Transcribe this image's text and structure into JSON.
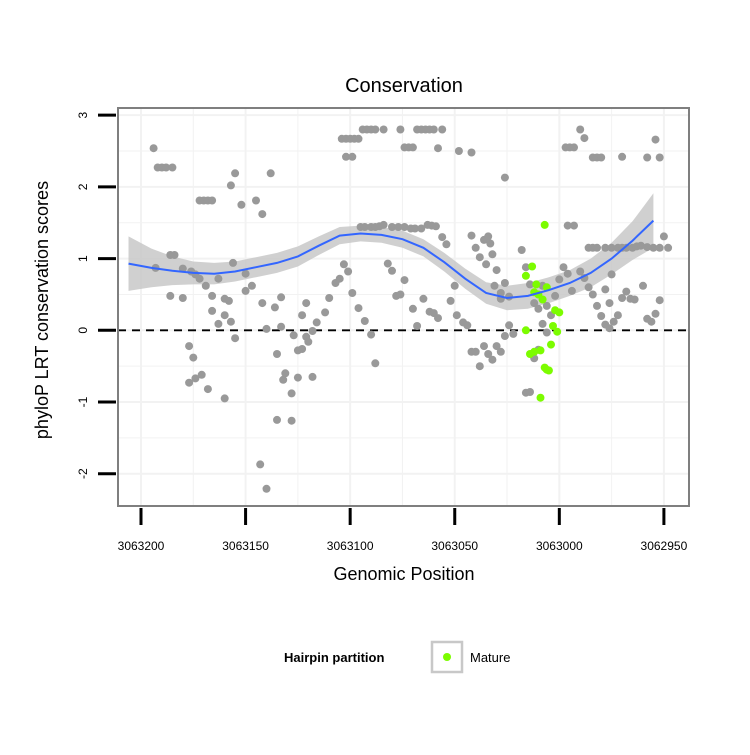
{
  "chart_data": {
    "type": "scatter",
    "title": "Conservation",
    "xlabel": "Genomic Position",
    "ylabel": "phyloP LRT conservation scores",
    "x_reversed": true,
    "xlim": [
      3063211,
      3062938
    ],
    "ylim": [
      -2.45,
      3.1
    ],
    "x_ticks": [
      3063200,
      3063150,
      3063100,
      3063050,
      3063000,
      3062950
    ],
    "x_tick_labels": [
      "3063200",
      "3063150",
      "3063100",
      "3063050",
      "3063000",
      "3062950"
    ],
    "y_ticks": [
      -2,
      -1,
      0,
      1,
      2,
      3
    ],
    "y_tick_labels": [
      "-2",
      "-1",
      "0",
      "1",
      "2",
      "3"
    ],
    "grid": true,
    "reference_line": {
      "y": 0,
      "style": "dashed",
      "color": "#000000"
    },
    "legend": {
      "title": "Hairpin partition",
      "placement": "bottom",
      "entries": [
        {
          "label": "Mature",
          "color": "#7cfc00"
        }
      ]
    },
    "colors": {
      "points": "#999999",
      "mature": "#7cfc00",
      "smooth_line": "#3366ff",
      "ribbon": "#c8c8c8",
      "panel_border": "#7f7f7f",
      "grid": "#f2f2f2"
    },
    "series": [
      {
        "role": "points",
        "points": [
          [
            3063194,
            2.54
          ],
          [
            3063192,
            2.27
          ],
          [
            3063190,
            2.27
          ],
          [
            3063188,
            2.27
          ],
          [
            3063185,
            2.27
          ],
          [
            3063193,
            0.87
          ],
          [
            3063186,
            1.05
          ],
          [
            3063184,
            1.05
          ],
          [
            3063180,
            0.86
          ],
          [
            3063176,
            0.82
          ],
          [
            3063174,
            0.78
          ],
          [
            3063172,
            0.72
          ],
          [
            3063169,
            0.62
          ],
          [
            3063166,
            0.48
          ],
          [
            3063163,
            0.72
          ],
          [
            3063186,
            0.48
          ],
          [
            3063180,
            0.45
          ],
          [
            3063177,
            -0.22
          ],
          [
            3063175,
            -0.38
          ],
          [
            3063171,
            -0.62
          ],
          [
            3063168,
            -0.82
          ],
          [
            3063177,
            -0.73
          ],
          [
            3063174,
            -0.67
          ],
          [
            3063160,
            -0.95
          ],
          [
            3063166,
            0.27
          ],
          [
            3063163,
            0.09
          ],
          [
            3063160,
            0.21
          ],
          [
            3063157,
            0.12
          ],
          [
            3063155,
            -0.11
          ],
          [
            3063150,
            0.55
          ],
          [
            3063147,
            0.62
          ],
          [
            3063142,
            0.38
          ],
          [
            3063140,
            0.02
          ],
          [
            3063135,
            -0.33
          ],
          [
            3063133,
            0.05
          ],
          [
            3063131,
            -0.6
          ],
          [
            3063128,
            -0.88
          ],
          [
            3063125,
            -0.28
          ],
          [
            3063123,
            0.21
          ],
          [
            3063121,
            0.38
          ],
          [
            3063118,
            -0.01
          ],
          [
            3063116,
            0.11
          ],
          [
            3063112,
            0.25
          ],
          [
            3063110,
            0.45
          ],
          [
            3063107,
            0.66
          ],
          [
            3063105,
            0.72
          ],
          [
            3063103,
            0.92
          ],
          [
            3063101,
            0.82
          ],
          [
            3063099,
            0.52
          ],
          [
            3063096,
            0.31
          ],
          [
            3063093,
            0.13
          ],
          [
            3063090,
            -0.06
          ],
          [
            3063088,
            -0.46
          ],
          [
            3063172,
            1.81
          ],
          [
            3063170,
            1.81
          ],
          [
            3063168,
            1.81
          ],
          [
            3063166,
            1.81
          ],
          [
            3063152,
            1.75
          ],
          [
            3063155,
            2.19
          ],
          [
            3063157,
            2.02
          ],
          [
            3063145,
            1.81
          ],
          [
            3063142,
            1.62
          ],
          [
            3063138,
            2.19
          ],
          [
            3063127,
            -0.07
          ],
          [
            3063121,
            -0.09
          ],
          [
            3063123,
            -0.26
          ],
          [
            3063135,
            -1.25
          ],
          [
            3063143,
            -1.87
          ],
          [
            3063140,
            -2.21
          ],
          [
            3063125,
            -0.66
          ],
          [
            3063118,
            -0.65
          ],
          [
            3063120,
            -0.16
          ],
          [
            3063132,
            -0.69
          ],
          [
            3063160,
            0.44
          ],
          [
            3063158,
            0.41
          ],
          [
            3063156,
            0.94
          ],
          [
            3063150,
            0.79
          ],
          [
            3063136,
            0.32
          ],
          [
            3063133,
            0.46
          ],
          [
            3063128,
            -1.26
          ],
          [
            3063104,
            2.67
          ],
          [
            3063102,
            2.67
          ],
          [
            3063100,
            2.67
          ],
          [
            3063098,
            2.67
          ],
          [
            3063096,
            2.67
          ],
          [
            3063094,
            2.8
          ],
          [
            3063092,
            2.8
          ],
          [
            3063090,
            2.8
          ],
          [
            3063088,
            2.8
          ],
          [
            3063084,
            2.8
          ],
          [
            3063076,
            2.8
          ],
          [
            3063074,
            2.55
          ],
          [
            3063072,
            2.55
          ],
          [
            3063070,
            2.55
          ],
          [
            3063068,
            2.8
          ],
          [
            3063066,
            2.8
          ],
          [
            3063064,
            2.8
          ],
          [
            3063062,
            2.8
          ],
          [
            3063060,
            2.8
          ],
          [
            3063058,
            2.54
          ],
          [
            3063056,
            2.8
          ],
          [
            3063102,
            2.42
          ],
          [
            3063099,
            2.42
          ],
          [
            3063095,
            1.44
          ],
          [
            3063093,
            1.44
          ],
          [
            3063090,
            1.44
          ],
          [
            3063088,
            1.44
          ],
          [
            3063086,
            1.45
          ],
          [
            3063084,
            1.47
          ],
          [
            3063080,
            1.44
          ],
          [
            3063077,
            1.44
          ],
          [
            3063074,
            1.44
          ],
          [
            3063071,
            1.42
          ],
          [
            3063069,
            1.42
          ],
          [
            3063066,
            1.42
          ],
          [
            3063063,
            1.47
          ],
          [
            3063061,
            1.46
          ],
          [
            3063059,
            1.45
          ],
          [
            3063056,
            1.3
          ],
          [
            3063054,
            1.2
          ],
          [
            3063050,
            0.62
          ],
          [
            3063052,
            0.41
          ],
          [
            3063049,
            0.21
          ],
          [
            3063046,
            0.11
          ],
          [
            3063044,
            0.07
          ],
          [
            3063042,
            -0.3
          ],
          [
            3063040,
            -0.3
          ],
          [
            3063038,
            -0.5
          ],
          [
            3063036,
            -0.22
          ],
          [
            3063034,
            -0.33
          ],
          [
            3063032,
            -0.41
          ],
          [
            3063030,
            -0.22
          ],
          [
            3063028,
            -0.3
          ],
          [
            3063026,
            -0.08
          ],
          [
            3063024,
            0.07
          ],
          [
            3063022,
            -0.05
          ],
          [
            3063082,
            0.93
          ],
          [
            3063080,
            0.83
          ],
          [
            3063078,
            0.48
          ],
          [
            3063076,
            0.5
          ],
          [
            3063074,
            0.7
          ],
          [
            3063070,
            0.3
          ],
          [
            3063068,
            0.06
          ],
          [
            3063065,
            0.44
          ],
          [
            3063062,
            0.26
          ],
          [
            3063060,
            0.24
          ],
          [
            3063058,
            0.17
          ],
          [
            3063042,
            1.32
          ],
          [
            3063040,
            1.15
          ],
          [
            3063038,
            1.02
          ],
          [
            3063036,
            1.26
          ],
          [
            3063034,
            1.31
          ],
          [
            3063032,
            1.06
          ],
          [
            3063030,
            0.84
          ],
          [
            3063028,
            0.52
          ],
          [
            3063026,
            0.66
          ],
          [
            3063024,
            0.47
          ],
          [
            3063048,
            2.5
          ],
          [
            3063042,
            2.48
          ],
          [
            3063035,
            0.92
          ],
          [
            3063033,
            1.21
          ],
          [
            3063031,
            0.62
          ],
          [
            3063028,
            0.44
          ],
          [
            3063026,
            2.13
          ],
          [
            3063018,
            1.12
          ],
          [
            3063016,
            0.88
          ],
          [
            3063014,
            0.64
          ],
          [
            3063012,
            0.38
          ],
          [
            3063010,
            0.3
          ],
          [
            3063008,
            0.09
          ],
          [
            3063006,
            -0.03
          ],
          [
            3063004,
            0.21
          ],
          [
            3063002,
            0.48
          ],
          [
            3063000,
            0.71
          ],
          [
            3062998,
            0.88
          ],
          [
            3062996,
            0.79
          ],
          [
            3062994,
            0.55
          ],
          [
            3063016,
            -0.87
          ],
          [
            3063014,
            -0.86
          ],
          [
            3063012,
            -0.39
          ],
          [
            3063010,
            -0.27
          ],
          [
            3063008,
            0.62
          ],
          [
            3063006,
            0.34
          ],
          [
            3062997,
            2.55
          ],
          [
            3062995,
            2.55
          ],
          [
            3062993,
            2.55
          ],
          [
            3062990,
            2.8
          ],
          [
            3062988,
            2.68
          ],
          [
            3062984,
            2.41
          ],
          [
            3062982,
            2.41
          ],
          [
            3062980,
            2.41
          ],
          [
            3062970,
            2.42
          ],
          [
            3062958,
            2.41
          ],
          [
            3062954,
            2.66
          ],
          [
            3062952,
            2.41
          ],
          [
            3062996,
            1.46
          ],
          [
            3062993,
            1.46
          ],
          [
            3062986,
            1.15
          ],
          [
            3062984,
            1.15
          ],
          [
            3062982,
            1.15
          ],
          [
            3062978,
            1.15
          ],
          [
            3062975,
            1.15
          ],
          [
            3062972,
            1.15
          ],
          [
            3062970,
            1.15
          ],
          [
            3062968,
            1.15
          ],
          [
            3062965,
            1.15
          ],
          [
            3062963,
            1.17
          ],
          [
            3062961,
            1.18
          ],
          [
            3062958,
            1.16
          ],
          [
            3062955,
            1.15
          ],
          [
            3062952,
            1.15
          ],
          [
            3062990,
            0.82
          ],
          [
            3062988,
            0.73
          ],
          [
            3062986,
            0.6
          ],
          [
            3062984,
            0.5
          ],
          [
            3062982,
            0.34
          ],
          [
            3062980,
            0.2
          ],
          [
            3062978,
            0.08
          ],
          [
            3062976,
            0.03
          ],
          [
            3062974,
            0.12
          ],
          [
            3062972,
            0.21
          ],
          [
            3062970,
            0.45
          ],
          [
            3062968,
            0.54
          ],
          [
            3062966,
            0.44
          ],
          [
            3062964,
            0.43
          ],
          [
            3062960,
            0.62
          ],
          [
            3062958,
            0.16
          ],
          [
            3062956,
            0.12
          ],
          [
            3062954,
            0.23
          ],
          [
            3062952,
            0.42
          ],
          [
            3062950,
            1.31
          ],
          [
            3062948,
            1.15
          ],
          [
            3062975,
            0.78
          ],
          [
            3062978,
            0.57
          ],
          [
            3062976,
            0.38
          ]
        ]
      },
      {
        "name": "Mature",
        "role": "mature",
        "points": [
          [
            3063016,
            0.0
          ],
          [
            3063014,
            -0.33
          ],
          [
            3063016,
            0.76
          ],
          [
            3063013,
            0.89
          ],
          [
            3063011,
            0.64
          ],
          [
            3063010,
            0.5
          ],
          [
            3063008,
            0.43
          ],
          [
            3063006,
            0.6
          ],
          [
            3063012,
            -0.3
          ],
          [
            3063009,
            -0.28
          ],
          [
            3063007,
            -0.52
          ],
          [
            3063006,
            -0.55
          ],
          [
            3063005,
            -0.56
          ],
          [
            3063004,
            -0.2
          ],
          [
            3063007,
            1.47
          ],
          [
            3063002,
            0.28
          ],
          [
            3063000,
            0.25
          ],
          [
            3063003,
            0.06
          ],
          [
            3063009,
            -0.94
          ],
          [
            3063001,
            -0.02
          ],
          [
            3063012,
            0.53
          ]
        ]
      }
    ],
    "smooth": {
      "x": [
        3063206,
        3063195,
        3063185,
        3063175,
        3063165,
        3063155,
        3063145,
        3063135,
        3063125,
        3063115,
        3063105,
        3063095,
        3063085,
        3063075,
        3063065,
        3063055,
        3063045,
        3063035,
        3063025,
        3063015,
        3063005,
        3062995,
        3062985,
        3062975,
        3062965,
        3062955
      ],
      "y": [
        0.93,
        0.87,
        0.83,
        0.8,
        0.79,
        0.82,
        0.88,
        0.94,
        1.03,
        1.18,
        1.32,
        1.35,
        1.33,
        1.27,
        1.15,
        0.95,
        0.72,
        0.52,
        0.45,
        0.48,
        0.56,
        0.66,
        0.8,
        1.0,
        1.25,
        1.53
      ],
      "lower": [
        0.55,
        0.6,
        0.63,
        0.64,
        0.64,
        0.68,
        0.74,
        0.8,
        0.89,
        1.05,
        1.2,
        1.24,
        1.22,
        1.15,
        1.03,
        0.82,
        0.58,
        0.37,
        0.28,
        0.3,
        0.38,
        0.48,
        0.6,
        0.78,
        0.98,
        1.15
      ],
      "upper": [
        1.31,
        1.14,
        1.03,
        0.96,
        0.94,
        0.96,
        1.02,
        1.08,
        1.17,
        1.31,
        1.44,
        1.46,
        1.44,
        1.39,
        1.27,
        1.08,
        0.86,
        0.67,
        0.62,
        0.66,
        0.74,
        0.84,
        1.0,
        1.22,
        1.52,
        1.91
      ]
    }
  }
}
